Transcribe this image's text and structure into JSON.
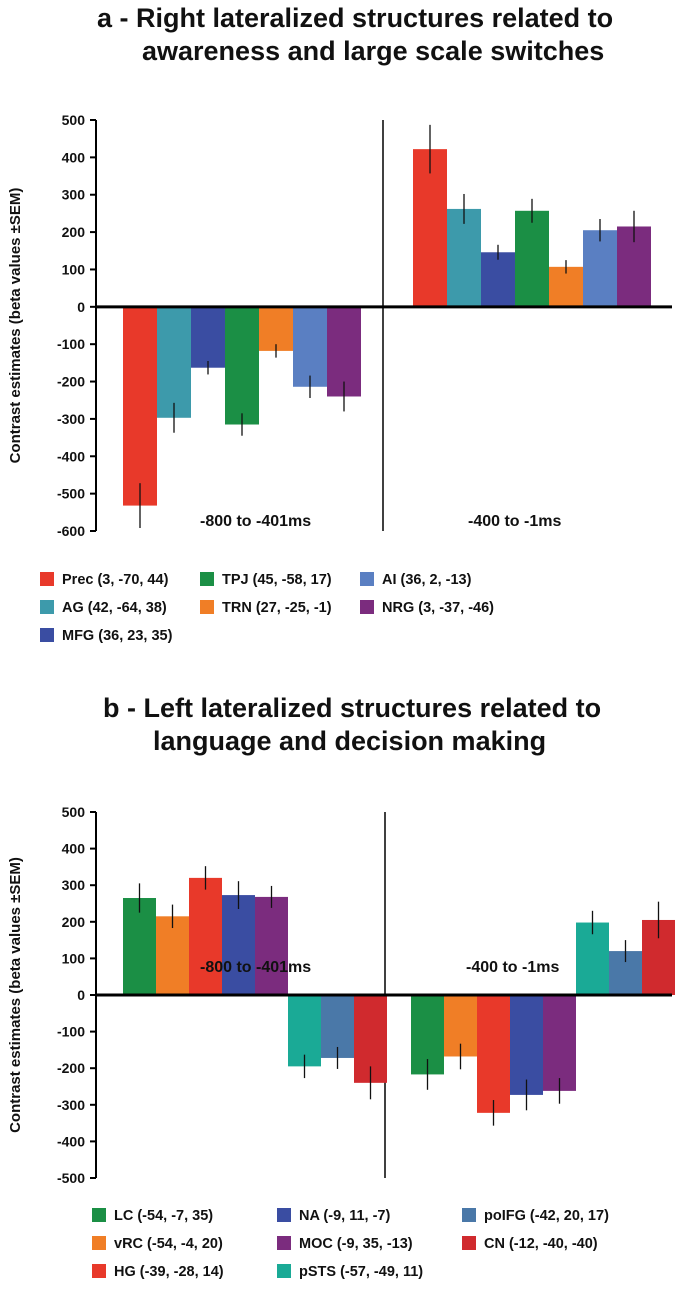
{
  "chart_data": [
    {
      "type": "bar",
      "panel": "a",
      "title_lines": [
        "a - Right lateralized structures  related to",
        "awareness and large scale switches"
      ],
      "ylabel": "Contrast estimates (beta values ±SEM)",
      "ylim": [
        -600,
        500
      ],
      "yticks": [
        "500",
        "400",
        "300",
        "200",
        "100",
        "0",
        "-100",
        "-200",
        "-300",
        "-400",
        "-500",
        "-600"
      ],
      "categories": [
        "-800 to -401ms",
        "-400 to -1ms"
      ],
      "series": [
        {
          "name": "Prec (3, -70, 44)",
          "color": "#e8392a",
          "values": [
            -532,
            422
          ],
          "errors": [
            60,
            65
          ]
        },
        {
          "name": "AG (42, -64, 38)",
          "color": "#3d9aab",
          "values": [
            -297,
            262
          ],
          "errors": [
            40,
            40
          ]
        },
        {
          "name": "MFG (36, 23, 35)",
          "color": "#3a4da2",
          "values": [
            -163,
            146
          ],
          "errors": [
            18,
            20
          ]
        },
        {
          "name": "TPJ (45, -58, 17)",
          "color": "#1b8f45",
          "values": [
            -315,
            257
          ],
          "errors": [
            30,
            32
          ]
        },
        {
          "name": "TRN (27, -25, -1)",
          "color": "#f07e26",
          "values": [
            -118,
            107
          ],
          "errors": [
            18,
            18
          ]
        },
        {
          "name": "AI (36, 2, -13)",
          "color": "#5a7fc2",
          "values": [
            -214,
            205
          ],
          "errors": [
            30,
            30
          ]
        },
        {
          "name": "NRG (3, -37, -46)",
          "color": "#7b2c7e",
          "values": [
            -240,
            215
          ],
          "errors": [
            40,
            42
          ]
        }
      ],
      "legend": [
        [
          "Prec (3, -70, 44)",
          "TPJ (45, -58, 17)",
          "AI (36, 2, -13)"
        ],
        [
          "AG (42, -64, 38)",
          "TRN (27, -25, -1)",
          "NRG (3, -37, -46)"
        ],
        [
          "MFG (36, 23, 35)"
        ]
      ]
    },
    {
      "type": "bar",
      "panel": "b",
      "title_lines": [
        "b - Left lateralized structures  related to",
        "language and decision making"
      ],
      "ylabel": "Contrast estimates (beta values ±SEM)",
      "ylim": [
        -500,
        500
      ],
      "yticks": [
        "500",
        "400",
        "300",
        "200",
        "100",
        "0",
        "-100",
        "-200",
        "-300",
        "-400",
        "-500"
      ],
      "categories": [
        "-800 to -401ms",
        "-400 to -1ms"
      ],
      "series": [
        {
          "name": "LC (-54, -7, 35)",
          "color": "#1b8f45",
          "values": [
            265,
            -217
          ],
          "errors": [
            40,
            42
          ]
        },
        {
          "name": "vRC (-54, -4, 20)",
          "color": "#f07e26",
          "values": [
            215,
            -168
          ],
          "errors": [
            32,
            35
          ]
        },
        {
          "name": "HG (-39, -28, 14)",
          "color": "#e8392a",
          "values": [
            320,
            -322
          ],
          "errors": [
            32,
            35
          ]
        },
        {
          "name": "NA (-9, 11, -7)",
          "color": "#3a4da2",
          "values": [
            273,
            -273
          ],
          "errors": [
            38,
            42
          ]
        },
        {
          "name": "MOC (-9, 35, -13)",
          "color": "#7b2c7e",
          "values": [
            268,
            -262
          ],
          "errors": [
            30,
            35
          ]
        },
        {
          "name": "pSTS (-57, -49, 11)",
          "color": "#1aaa96",
          "values": [
            -195,
            198
          ],
          "errors": [
            32,
            32
          ]
        },
        {
          "name": "poIFG (-42, 20, 17)",
          "color": "#4a78a8",
          "values": [
            -172,
            120
          ],
          "errors": [
            30,
            30
          ]
        },
        {
          "name": "CN (-12, -40, -40)",
          "color": "#d02a2e",
          "values": [
            -240,
            205
          ],
          "errors": [
            45,
            50
          ]
        }
      ],
      "legend": [
        [
          "LC (-54, -7, 35)",
          "NA (-9, 11, -7)",
          "poIFG (-42, 20, 17)"
        ],
        [
          "vRC (-54, -4, 20)",
          "MOC (-9, 35, -13)",
          "CN (-12, -40, -40)"
        ],
        [
          "HG (-39, -28, 14)",
          "pSTS (-57, -49, 11)"
        ]
      ]
    }
  ]
}
